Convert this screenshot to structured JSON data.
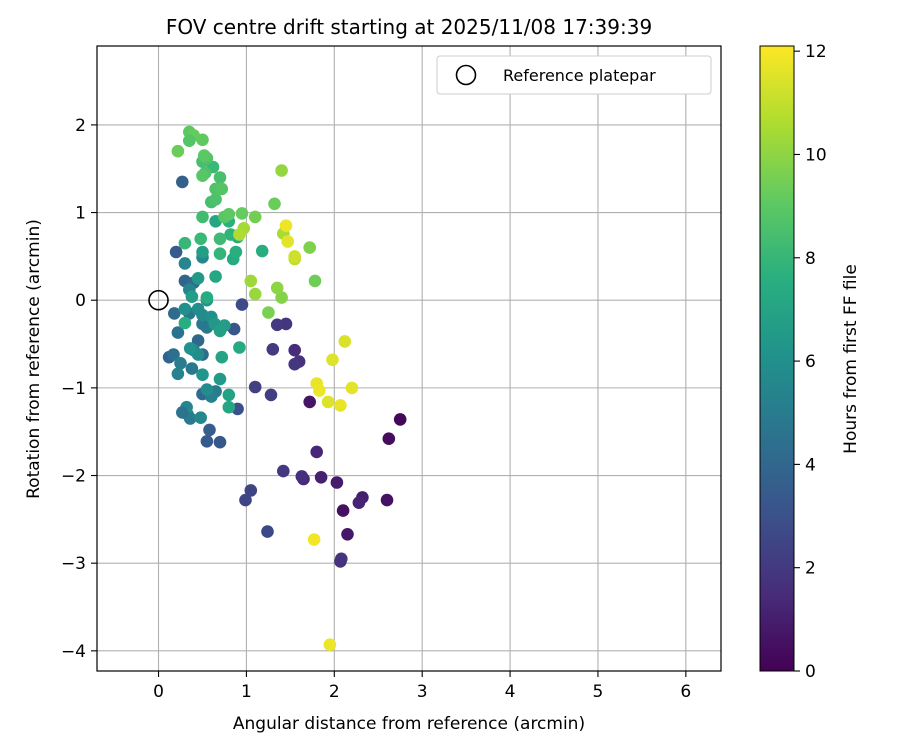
{
  "chart_data": {
    "type": "scatter",
    "title": "FOV centre drift starting at 2025/11/08 17:39:39",
    "xlabel": "Angular distance from reference (arcmin)",
    "ylabel": "Rotation from reference (arcmin)",
    "xlim": [
      -0.7,
      6.4
    ],
    "ylim": [
      -4.23,
      2.9
    ],
    "xticks": [
      0,
      1,
      2,
      3,
      4,
      5,
      6
    ],
    "yticks": [
      2,
      1,
      0,
      -1,
      -2,
      -3,
      -4
    ],
    "grid": true,
    "legend": {
      "position": "top-right",
      "entries": [
        "Reference platepar"
      ]
    },
    "reference_point": {
      "x": 0,
      "y": 0,
      "label": "Reference platepar"
    },
    "colorbar": {
      "label": "Hours from first FF file",
      "range": [
        0,
        12.1
      ],
      "ticks": [
        0,
        2,
        4,
        6,
        8,
        10,
        12
      ],
      "colormap": "viridis"
    },
    "points": [
      [
        2.75,
        -1.36,
        0.2
      ],
      [
        2.62,
        -1.58,
        0.4
      ],
      [
        2.6,
        -2.28,
        0.6
      ],
      [
        2.15,
        -2.67,
        0.8
      ],
      [
        2.1,
        -2.4,
        0.5
      ],
      [
        2.32,
        -2.25,
        1.0
      ],
      [
        2.28,
        -2.31,
        1.2
      ],
      [
        2.03,
        -2.08,
        0.9
      ],
      [
        1.85,
        -2.02,
        1.1
      ],
      [
        1.65,
        -2.04,
        1.4
      ],
      [
        1.63,
        -2.01,
        1.6
      ],
      [
        1.8,
        -1.73,
        1.3
      ],
      [
        1.72,
        -1.16,
        0.7
      ],
      [
        1.55,
        -0.57,
        1.5
      ],
      [
        1.6,
        -0.7,
        1.7
      ],
      [
        1.55,
        -0.73,
        1.9
      ],
      [
        1.45,
        -0.27,
        1.8
      ],
      [
        1.35,
        -0.28,
        2.0
      ],
      [
        1.3,
        -0.56,
        2.1
      ],
      [
        1.28,
        -1.08,
        2.2
      ],
      [
        1.1,
        -0.99,
        2.3
      ],
      [
        1.42,
        -1.95,
        2.0
      ],
      [
        1.05,
        -2.17,
        2.4
      ],
      [
        0.99,
        -2.28,
        2.5
      ],
      [
        1.24,
        -2.64,
        2.6
      ],
      [
        2.08,
        -2.95,
        1.9
      ],
      [
        2.07,
        -2.98,
        1.7
      ],
      [
        0.95,
        -0.05,
        2.8
      ],
      [
        0.9,
        -1.24,
        3.0
      ],
      [
        0.86,
        -0.33,
        3.2
      ],
      [
        0.7,
        -1.62,
        3.3
      ],
      [
        0.55,
        -1.61,
        3.4
      ],
      [
        0.58,
        -1.48,
        3.6
      ],
      [
        0.2,
        0.55,
        3.5
      ],
      [
        0.27,
        1.35,
        3.7
      ],
      [
        0.3,
        0.22,
        3.9
      ],
      [
        0.18,
        -0.15,
        4.2
      ],
      [
        0.22,
        -0.37,
        4.5
      ],
      [
        0.12,
        -0.65,
        3.8
      ],
      [
        0.17,
        -0.62,
        4.4
      ],
      [
        0.25,
        -0.72,
        5.1
      ],
      [
        0.22,
        -0.84,
        5.3
      ],
      [
        0.35,
        -0.15,
        4.7
      ],
      [
        0.45,
        -0.46,
        4.0
      ],
      [
        0.5,
        -0.62,
        4.2
      ],
      [
        0.5,
        -0.27,
        4.8
      ],
      [
        0.55,
        -0.31,
        4.9
      ],
      [
        0.5,
        -1.07,
        4.1
      ],
      [
        0.65,
        -1.04,
        5.0
      ],
      [
        0.6,
        -1.1,
        5.2
      ],
      [
        0.32,
        -1.22,
        5.5
      ],
      [
        0.33,
        -1.3,
        5.8
      ],
      [
        0.36,
        -1.35,
        5.0
      ],
      [
        0.48,
        -1.34,
        5.6
      ],
      [
        0.27,
        -1.28,
        4.6
      ],
      [
        0.4,
        0.2,
        4.3
      ],
      [
        0.35,
        0.12,
        5.4
      ],
      [
        0.45,
        -0.1,
        5.9
      ],
      [
        0.55,
        0.0,
        6.2
      ],
      [
        0.5,
        -0.17,
        5.7
      ],
      [
        0.6,
        -0.19,
        6.0
      ],
      [
        0.64,
        -0.27,
        6.4
      ],
      [
        0.75,
        -0.29,
        6.6
      ],
      [
        0.7,
        -0.35,
        6.8
      ],
      [
        0.72,
        -0.65,
        7.0
      ],
      [
        0.4,
        -0.57,
        5.3
      ],
      [
        0.45,
        -0.62,
        5.9
      ],
      [
        0.36,
        -0.55,
        6.1
      ],
      [
        0.5,
        -0.85,
        6.3
      ],
      [
        0.55,
        -1.02,
        5.8
      ],
      [
        0.7,
        -0.9,
        6.5
      ],
      [
        0.8,
        -1.08,
        6.9
      ],
      [
        0.8,
        -1.22,
        7.1
      ],
      [
        0.92,
        -0.54,
        7.3
      ],
      [
        0.38,
        0.04,
        6.7
      ],
      [
        0.3,
        0.42,
        5.5
      ],
      [
        0.45,
        0.25,
        6.4
      ],
      [
        0.55,
        0.03,
        7.4
      ],
      [
        0.65,
        0.27,
        7.2
      ],
      [
        0.3,
        -0.1,
        6.0
      ],
      [
        0.3,
        -0.26,
        7.5
      ],
      [
        0.38,
        -0.78,
        4.9
      ],
      [
        0.5,
        0.49,
        5.6
      ],
      [
        0.5,
        0.55,
        6.8
      ],
      [
        0.65,
        0.9,
        7.1
      ],
      [
        0.8,
        0.9,
        7.7
      ],
      [
        0.7,
        0.53,
        7.9
      ],
      [
        0.85,
        0.47,
        7.3
      ],
      [
        0.88,
        0.55,
        7.6
      ],
      [
        0.9,
        0.72,
        7.4
      ],
      [
        0.82,
        0.75,
        7.8
      ],
      [
        0.48,
        0.7,
        8.1
      ],
      [
        0.3,
        0.65,
        8.0
      ],
      [
        0.7,
        0.7,
        8.2
      ],
      [
        0.5,
        0.95,
        8.3
      ],
      [
        0.6,
        1.12,
        8.4
      ],
      [
        0.7,
        1.4,
        8.5
      ],
      [
        0.65,
        1.15,
        8.6
      ],
      [
        0.65,
        1.27,
        8.7
      ],
      [
        0.72,
        1.27,
        8.8
      ],
      [
        0.75,
        0.95,
        8.9
      ],
      [
        0.8,
        0.98,
        9.0
      ],
      [
        0.62,
        1.52,
        8.1
      ],
      [
        0.5,
        1.58,
        8.4
      ],
      [
        0.53,
        1.45,
        8.6
      ],
      [
        0.5,
        1.42,
        8.9
      ],
      [
        0.55,
        1.62,
        8.7
      ],
      [
        0.5,
        1.83,
        9.1
      ],
      [
        0.35,
        1.92,
        9.0
      ],
      [
        0.4,
        1.88,
        9.2
      ],
      [
        0.35,
        1.82,
        8.8
      ],
      [
        0.22,
        1.7,
        9.3
      ],
      [
        0.52,
        1.65,
        9.0
      ],
      [
        1.18,
        0.56,
        7.5
      ],
      [
        1.32,
        1.1,
        9.3
      ],
      [
        1.1,
        0.95,
        9.5
      ],
      [
        0.95,
        0.99,
        9.2
      ],
      [
        1.25,
        -0.14,
        9.6
      ],
      [
        1.4,
        0.03,
        9.8
      ],
      [
        1.35,
        0.14,
        10.0
      ],
      [
        1.1,
        0.07,
        10.2
      ],
      [
        1.05,
        0.22,
        10.3
      ],
      [
        1.78,
        0.22,
        9.4
      ],
      [
        1.72,
        0.6,
        9.7
      ],
      [
        1.4,
        1.48,
        10.1
      ],
      [
        1.42,
        0.76,
        10.5
      ],
      [
        0.97,
        0.82,
        10.4
      ],
      [
        0.92,
        0.75,
        10.6
      ],
      [
        1.55,
        0.47,
        10.9
      ],
      [
        1.55,
        0.5,
        11.2
      ],
      [
        1.47,
        0.67,
        11.6
      ],
      [
        1.45,
        0.85,
        11.8
      ],
      [
        2.12,
        -0.47,
        11.4
      ],
      [
        2.2,
        -1.0,
        11.6
      ],
      [
        1.98,
        -0.68,
        11.5
      ],
      [
        1.8,
        -0.95,
        11.7
      ],
      [
        1.83,
        -1.03,
        11.8
      ],
      [
        1.93,
        -1.16,
        11.5
      ],
      [
        2.07,
        -1.2,
        11.7
      ],
      [
        1.77,
        -2.73,
        11.9
      ],
      [
        1.95,
        -3.93,
        11.8
      ]
    ]
  }
}
